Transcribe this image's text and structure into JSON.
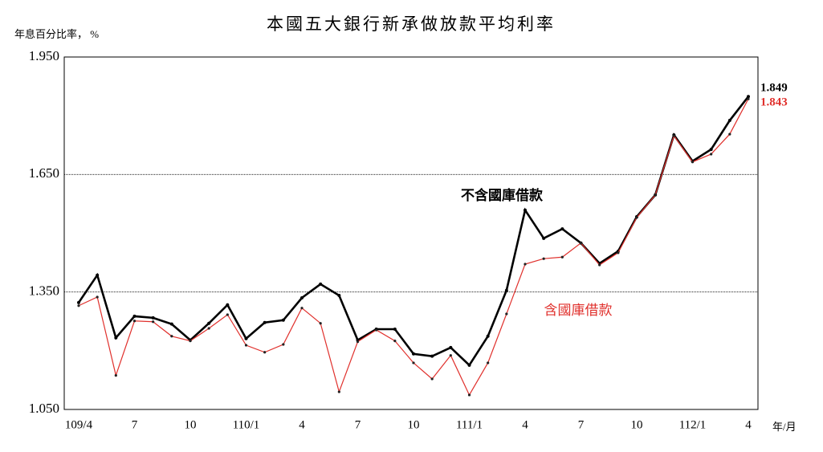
{
  "chart_data": {
    "type": "line",
    "title": "本國五大銀行新承做放款平均利率",
    "ylabel": "年息百分比率， %",
    "xlabel": "年/月",
    "categories": [
      "109/4",
      null,
      null,
      "7",
      null,
      null,
      "10",
      null,
      null,
      "110/1",
      null,
      null,
      "4",
      null,
      null,
      "7",
      null,
      null,
      "10",
      null,
      null,
      "111/1",
      null,
      null,
      "4",
      null,
      null,
      "7",
      null,
      null,
      "10",
      null,
      null,
      "112/1",
      null,
      null,
      "4"
    ],
    "series": [
      {
        "name": "不含國庫借款",
        "color": "#000000",
        "values": [
          1.323,
          1.393,
          1.233,
          1.288,
          1.284,
          1.268,
          1.227,
          1.27,
          1.317,
          1.231,
          1.272,
          1.278,
          1.335,
          1.37,
          1.341,
          1.227,
          1.255,
          1.255,
          1.192,
          1.186,
          1.208,
          1.163,
          1.237,
          1.354,
          1.559,
          1.487,
          1.511,
          1.475,
          1.423,
          1.454,
          1.542,
          1.598,
          1.751,
          1.684,
          1.714,
          1.788,
          1.849
        ]
      },
      {
        "name": "含國庫借款",
        "color": "#e0302c",
        "values": [
          1.315,
          1.337,
          1.137,
          1.276,
          1.274,
          1.237,
          1.225,
          1.257,
          1.292,
          1.214,
          1.196,
          1.216,
          1.309,
          1.27,
          1.095,
          1.223,
          1.253,
          1.225,
          1.169,
          1.128,
          1.188,
          1.087,
          1.169,
          1.294,
          1.421,
          1.435,
          1.439,
          1.475,
          1.419,
          1.45,
          1.54,
          1.598,
          1.749,
          1.682,
          1.702,
          1.753,
          1.843
        ]
      }
    ],
    "ylim": [
      1.05,
      1.95
    ],
    "yticks": [
      {
        "value": 1.05,
        "label": "1.050"
      },
      {
        "value": 1.35,
        "label": "1.350"
      },
      {
        "value": 1.65,
        "label": "1.650"
      },
      {
        "value": 1.95,
        "label": "1.950"
      }
    ],
    "grid": true
  }
}
